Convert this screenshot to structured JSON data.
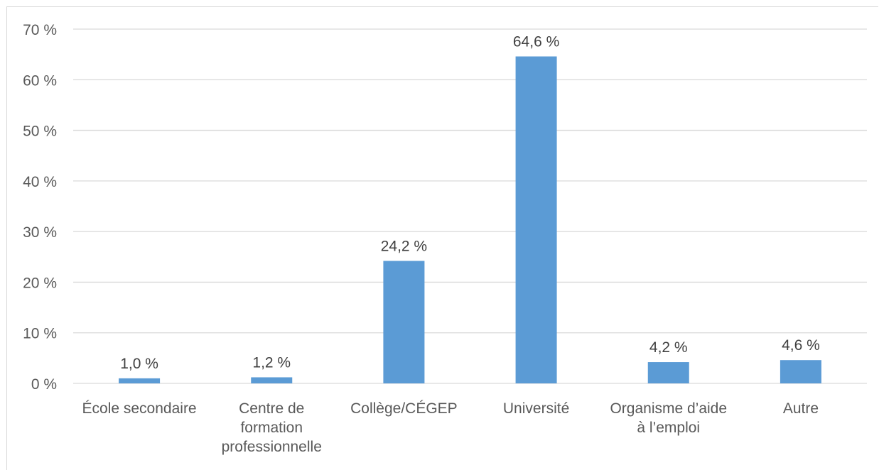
{
  "chart_data": {
    "type": "bar",
    "categories": [
      [
        "École secondaire"
      ],
      [
        "Centre de",
        "formation",
        "professionnelle"
      ],
      [
        "Collège/CÉGEP"
      ],
      [
        "Université"
      ],
      [
        "Organisme d’aide",
        "à l’emploi"
      ],
      [
        "Autre"
      ]
    ],
    "values": [
      1.0,
      1.2,
      24.2,
      64.6,
      4.2,
      4.6
    ],
    "data_labels": [
      "1,0 %",
      "1,2 %",
      "24,2 %",
      "64,6 %",
      "4,2 %",
      "4,6 %"
    ],
    "y_ticks": [
      0,
      10,
      20,
      30,
      40,
      50,
      60,
      70
    ],
    "y_tick_labels": [
      "0 %",
      "10 %",
      "20 %",
      "30 %",
      "40 %",
      "50 %",
      "60 %",
      "70 %"
    ],
    "ylim": [
      0,
      70
    ],
    "title": "",
    "xlabel": "",
    "ylabel": "",
    "grid": true,
    "legend": "none",
    "colors": {
      "bar": "#5b9bd5",
      "grid": "#d9d9d9",
      "text": "#595959"
    }
  }
}
